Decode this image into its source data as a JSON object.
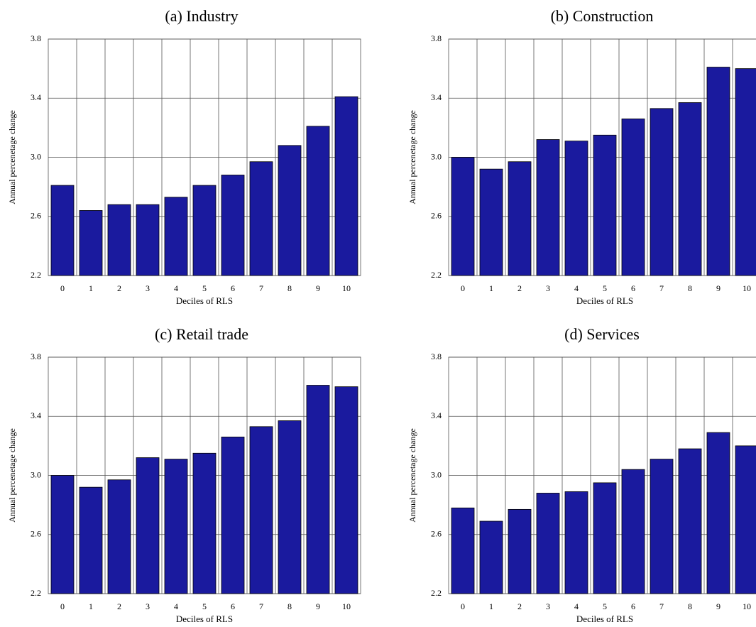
{
  "chart_data": [
    {
      "type": "bar",
      "title": "(a) Industry",
      "xlabel": "Deciles of RLS",
      "ylabel": "Annual percenetage change",
      "categories": [
        "0",
        "1",
        "2",
        "3",
        "4",
        "5",
        "6",
        "7",
        "8",
        "9",
        "10"
      ],
      "values": [
        2.81,
        2.64,
        2.68,
        2.68,
        2.73,
        2.81,
        2.88,
        2.97,
        3.08,
        3.21,
        3.41
      ],
      "color": "#1a1a9e",
      "ylim": [
        2.2,
        3.8
      ],
      "yticks": [
        2.2,
        2.6,
        {
          "value": 3,
          "label": "3.0"
        },
        3.4,
        3.8
      ],
      "grid": true
    },
    {
      "type": "bar",
      "title": "(b) Construction",
      "xlabel": "Deciles of RLS",
      "ylabel": "Annual percenetage change",
      "categories": [
        "0",
        "1",
        "2",
        "3",
        "4",
        "5",
        "6",
        "7",
        "8",
        "9",
        "10"
      ],
      "values": [
        3.0,
        2.92,
        2.97,
        3.12,
        3.11,
        3.15,
        3.26,
        3.33,
        3.37,
        3.61,
        3.6
      ],
      "color": "#1a1a9e",
      "ylim": [
        2.2,
        3.8
      ],
      "yticks": [
        2.2,
        2.6,
        {
          "value": 3,
          "label": "3.0"
        },
        3.4,
        3.8
      ],
      "grid": true
    },
    {
      "type": "bar",
      "title": "(c) Retail trade",
      "xlabel": "Deciles of RLS",
      "ylabel": "Annual percenetage change",
      "categories": [
        "0",
        "1",
        "2",
        "3",
        "4",
        "5",
        "6",
        "7",
        "8",
        "9",
        "10"
      ],
      "values": [
        3.0,
        2.92,
        2.97,
        3.12,
        3.11,
        3.15,
        3.26,
        3.33,
        3.37,
        3.61,
        3.6
      ],
      "color": "#1a1a9e",
      "ylim": [
        2.2,
        3.8
      ],
      "yticks": [
        2.2,
        2.6,
        {
          "value": 3,
          "label": "3.0"
        },
        3.4,
        3.8
      ],
      "grid": true
    },
    {
      "type": "bar",
      "title": "(d) Services",
      "xlabel": "Deciles of RLS",
      "ylabel": "Annual percenetage change",
      "categories": [
        "0",
        "1",
        "2",
        "3",
        "4",
        "5",
        "6",
        "7",
        "8",
        "9",
        "10"
      ],
      "values": [
        2.78,
        2.69,
        2.77,
        2.88,
        2.89,
        2.95,
        3.04,
        3.11,
        3.18,
        3.29,
        3.2
      ],
      "color": "#1a1a9e",
      "ylim": [
        2.2,
        3.8
      ],
      "yticks": [
        2.2,
        2.6,
        {
          "value": 3,
          "label": "3.0"
        },
        3.4,
        3.8
      ],
      "grid": true
    }
  ]
}
